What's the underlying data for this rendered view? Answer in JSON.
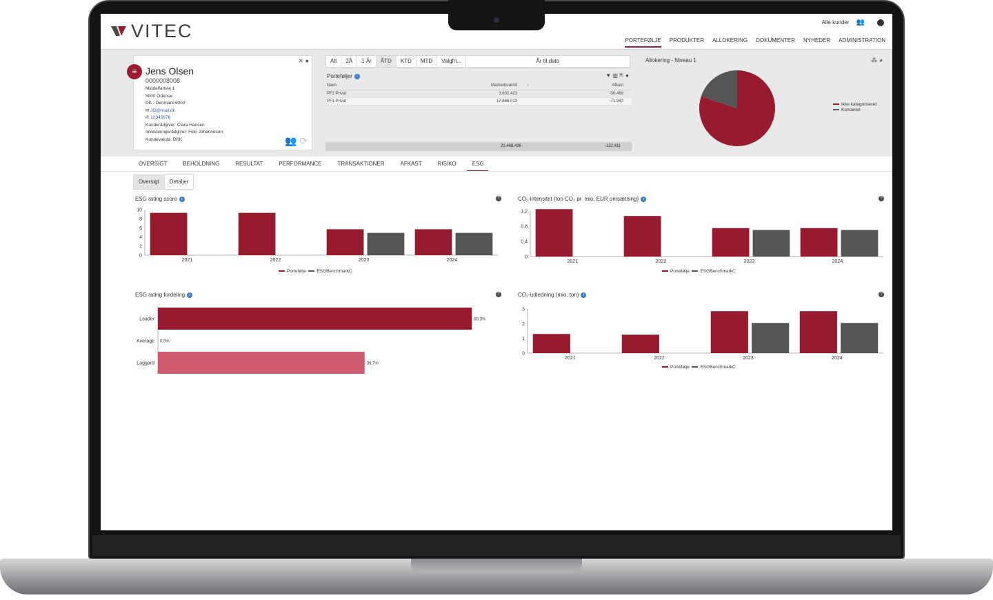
{
  "app": {
    "logo": "VITEC",
    "user_menu": "Alle kunder",
    "nav": [
      "PORTEFØLJE",
      "PRODUKTER",
      "ALLOKERING",
      "DOKUMENTER",
      "NYHEDER",
      "ADMINISTRATION"
    ]
  },
  "client": {
    "name": "Jens Olsen",
    "id": "0000008008",
    "address1": "Middelfartvej 1",
    "address2": "5000 Odense",
    "address3": "DK - Denmark  5000",
    "email": "JO@mail.dk",
    "phone": "12345678",
    "advisor": "Kunderådgiver: Clara Hansen",
    "investment_advisor": "Investeringsrådgiver: Fido Johanneson",
    "currency": "Kundevaluta: DKK"
  },
  "periods": {
    "tabs": [
      "Alt",
      "2Å",
      "1 År",
      "ÅTD",
      "KTD",
      "MTD",
      "Valgfri..."
    ],
    "active": "ÅTD",
    "label": "År til dato"
  },
  "portfolios": {
    "title": "Porteføljer",
    "columns": [
      "Navn",
      "Markedsværdi",
      "Afkast"
    ],
    "sort_icon": "↑",
    "rows": [
      {
        "name": "PF2 Privat",
        "value": "3.602.423",
        "return": "-50.469"
      },
      {
        "name": "PF1 Privat",
        "value": "17.866.013",
        "return": "-71.943"
      }
    ],
    "total_value": "21.468.436",
    "total_return": "-122.411"
  },
  "allocation": {
    "title": "Allokering - Niveau 1",
    "legend": [
      {
        "label": "Ikke kategoriseret",
        "color": "#971a2e",
        "share": 0.8
      },
      {
        "label": "Kontanter",
        "color": "#555555",
        "share": 0.2
      }
    ]
  },
  "tabs": {
    "main": [
      "OVERSIGT",
      "BEHOLDNING",
      "RESULTAT",
      "PERFORMANCE",
      "TRANSAKTIONER",
      "AFKAST",
      "RISIKO",
      "ESG"
    ],
    "active": "ESG",
    "sub": [
      "Oversigt",
      "Detaljer"
    ],
    "sub_active": "Oversigt"
  },
  "colors": {
    "portfolio": "#971a2e",
    "benchmark": "#555555",
    "laggard": "#d05a6e"
  },
  "chart_data": [
    {
      "type": "bar",
      "title": "ESG rating score",
      "categories": [
        "2021",
        "2022",
        "2023",
        "2024"
      ],
      "ylim": [
        0,
        10
      ],
      "yticks": [
        "0",
        "2",
        "4",
        "6",
        "8",
        "10"
      ],
      "series": [
        {
          "name": "Portefølje",
          "values": [
            9.3,
            9.3,
            5.7,
            5.7
          ]
        },
        {
          "name": "ESGBenchmarkC",
          "values": [
            null,
            null,
            4.9,
            4.9
          ]
        }
      ]
    },
    {
      "type": "bar",
      "title": "CO₂-intensitet (ton CO₂ pr. mio. EUR omsætning)",
      "categories": [
        "2021",
        "2022",
        "2023",
        "2024"
      ],
      "ylim": [
        0,
        1.2
      ],
      "yticks": [
        "0",
        "0,4",
        "0,8",
        "1,2"
      ],
      "series": [
        {
          "name": "Portefølje",
          "values": [
            1.25,
            1.07,
            0.75,
            0.75
          ]
        },
        {
          "name": "ESGBenchmarkC",
          "values": [
            null,
            null,
            0.7,
            0.7
          ]
        }
      ]
    },
    {
      "type": "bar",
      "orientation": "horizontal",
      "title": "ESG rating fordeling",
      "categories": [
        "Leader",
        "Average",
        "Laggard"
      ],
      "values": [
        60.3,
        0.0,
        39.7
      ],
      "labels": [
        "60,3%",
        "0,0%",
        "39,7%"
      ]
    },
    {
      "type": "bar",
      "title": "CO₂-udledning (mio. ton)",
      "categories": [
        "2021",
        "2022",
        "2023",
        "2024"
      ],
      "ylim": [
        0,
        3
      ],
      "yticks": [
        "0",
        "1",
        "2",
        "3"
      ],
      "series": [
        {
          "name": "Portefølje",
          "values": [
            1.3,
            1.25,
            2.85,
            2.85
          ]
        },
        {
          "name": "ESGBenchmarkC",
          "values": [
            null,
            null,
            2.05,
            2.05
          ]
        }
      ]
    }
  ]
}
